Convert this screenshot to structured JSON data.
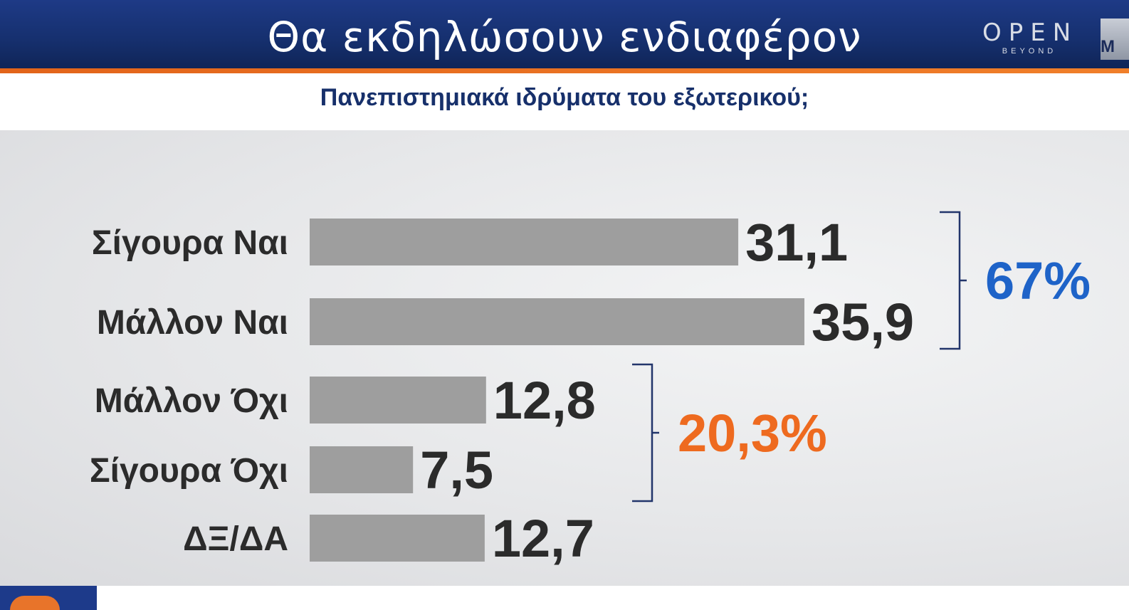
{
  "header": {
    "title": "Θα εκδηλώσουν ενδιαφέρον",
    "logo_main": "OPEN",
    "logo_sub": "BEYOND",
    "edge_tab": "M"
  },
  "colors": {
    "header_blue": "#1a3578",
    "accent_orange": "#f07f2a",
    "bar_gray": "#9e9e9e",
    "yes_blue": "#1e63c8",
    "no_orange": "#ee6a1f"
  },
  "chart_data": {
    "type": "bar",
    "orientation": "horizontal",
    "title": "Πανεπιστημιακά ιδρύματα του εξωτερικού;",
    "categories": [
      "Σίγουρα Ναι",
      "Μάλλον Ναι",
      "Μάλλον Όχι",
      "Σίγουρα Όχι",
      "ΔΞ/ΔΑ"
    ],
    "values": [
      31.1,
      35.9,
      12.8,
      7.5,
      12.7
    ],
    "value_labels": [
      "31,1",
      "35,9",
      "12,8",
      "7,5",
      "12,7"
    ],
    "xlim": [
      0,
      40
    ],
    "grid": false,
    "groups": [
      {
        "label": "67%",
        "from": 0,
        "to": 1,
        "color": "#1e63c8"
      },
      {
        "label": "20,3%",
        "from": 2,
        "to": 3,
        "color": "#ee6a1f"
      }
    ]
  }
}
